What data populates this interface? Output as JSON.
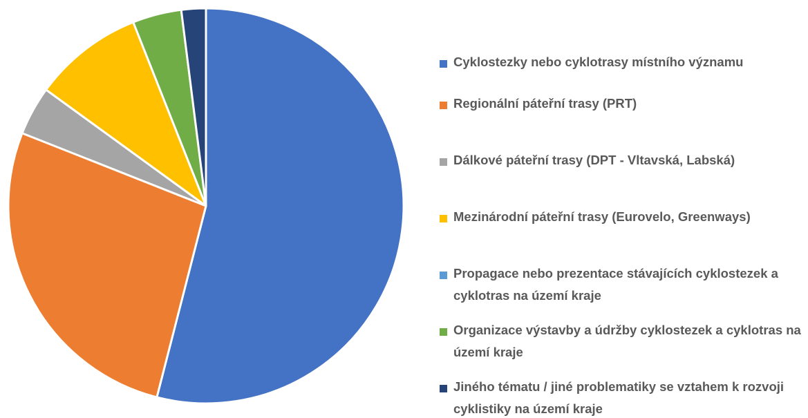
{
  "chart_data": {
    "type": "pie",
    "categories": [
      "Cyklostezky nebo cyklotrasy místního významu",
      "Regionální páteřní trasy (PRT)",
      "Dálkové páteřní trasy (DPT - Vltavská, Labská)",
      "Mezinárodní páteřní trasy (Eurovelo, Greenways)",
      "Propagace nebo prezentace stávajících cyklostezek a cyklotras na území kraje",
      "Organizace výstavby a údržby cyklostezek a cyklotras na území kraje",
      "Jiného tématu / jiné problematiky se vztahem k rozvoji cyklistiky na území kraje"
    ],
    "values": [
      54,
      27,
      4,
      9,
      0,
      4,
      2
    ],
    "colors": [
      "#4472c4",
      "#ed7d31",
      "#a5a5a5",
      "#ffc000",
      "#5b9bd5",
      "#70ad47",
      "#264478"
    ],
    "legend": "right"
  }
}
